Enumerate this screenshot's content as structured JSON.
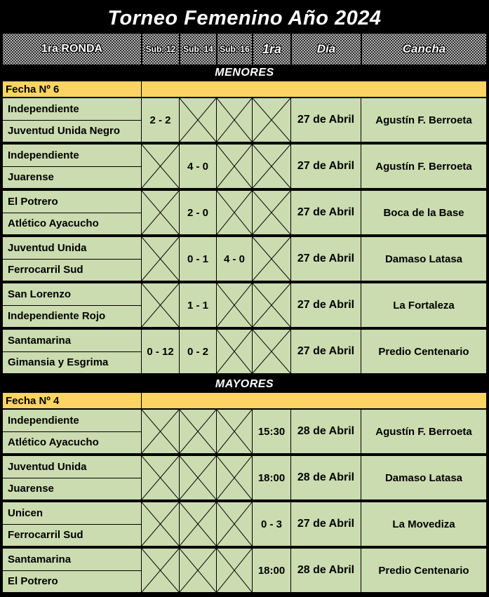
{
  "title": "Torneo Femenino Año 2024",
  "header": {
    "round_label": "1ra RONDA",
    "col_sub12": "Sub. 12",
    "col_sub14": "Sub. 14",
    "col_sub16": "Sub. 16",
    "col_1ra": "1ra",
    "col_dia": "Día",
    "col_cancha": "Cancha"
  },
  "sections": [
    {
      "band": "MENORES",
      "fecha": "Fecha Nº 6",
      "matches": [
        {
          "home": "Independiente",
          "away": "Juventud Unida Negro",
          "sub12": "2 - 2",
          "sub14": "X",
          "sub16": "X",
          "primera": "X",
          "dia": "27 de Abril",
          "cancha": "Agustín F. Berroeta"
        },
        {
          "home": "Independiente",
          "away": "Juarense",
          "sub12": "X",
          "sub14": "4 - 0",
          "sub16": "X",
          "primera": "X",
          "dia": "27 de Abril",
          "cancha": "Agustín F. Berroeta"
        },
        {
          "home": "El Potrero",
          "away": "Atlético Ayacucho",
          "sub12": "X",
          "sub14": "2 - 0",
          "sub16": "X",
          "primera": "X",
          "dia": "27 de Abril",
          "cancha": "Boca de la Base"
        },
        {
          "home": "Juventud Unida",
          "away": "Ferrocarril Sud",
          "sub12": "X",
          "sub14": "0 - 1",
          "sub16": "4 - 0",
          "primera": "X",
          "dia": "27 de Abril",
          "cancha": "Damaso Latasa"
        },
        {
          "home": "San Lorenzo",
          "away": "Independiente Rojo",
          "sub12": "X",
          "sub14": "1 - 1",
          "sub16": "X",
          "primera": "X",
          "dia": "27 de Abril",
          "cancha": "La Fortaleza"
        },
        {
          "home": "Santamarina",
          "away": "Gimansia y Esgrima",
          "sub12": "0 - 12",
          "sub14": "0 - 2",
          "sub16": "X",
          "primera": "X",
          "dia": "27 de Abril",
          "cancha": "Predio Centenario"
        }
      ]
    },
    {
      "band": "MAYORES",
      "fecha": "Fecha Nº 4",
      "matches": [
        {
          "home": "Independiente",
          "away": "Atlético Ayacucho",
          "sub12": "X",
          "sub14": "X",
          "sub16": "X",
          "primera": "15:30",
          "dia": "28 de Abril",
          "cancha": "Agustín F. Berroeta"
        },
        {
          "home": "Juventud Unida",
          "away": "Juarense",
          "sub12": "X",
          "sub14": "X",
          "sub16": "X",
          "primera": "18:00",
          "dia": "28 de Abril",
          "cancha": "Damaso Latasa"
        },
        {
          "home": "Unicen",
          "away": "Ferrocarril Sud",
          "sub12": "X",
          "sub14": "X",
          "sub16": "X",
          "primera": "0 - 3",
          "dia": "27 de Abril",
          "cancha": "La Movediza"
        },
        {
          "home": "Santamarina",
          "away": "El Potrero",
          "sub12": "X",
          "sub14": "X",
          "sub16": "X",
          "primera": "18:00",
          "dia": "28 de Abril",
          "cancha": "Predio Centenario"
        }
      ]
    }
  ],
  "colors": {
    "row_green": "#CBDCB0",
    "fecha_orange": "#FBD463",
    "band_black": "#000000",
    "header_gray": "#BDBDBD"
  }
}
